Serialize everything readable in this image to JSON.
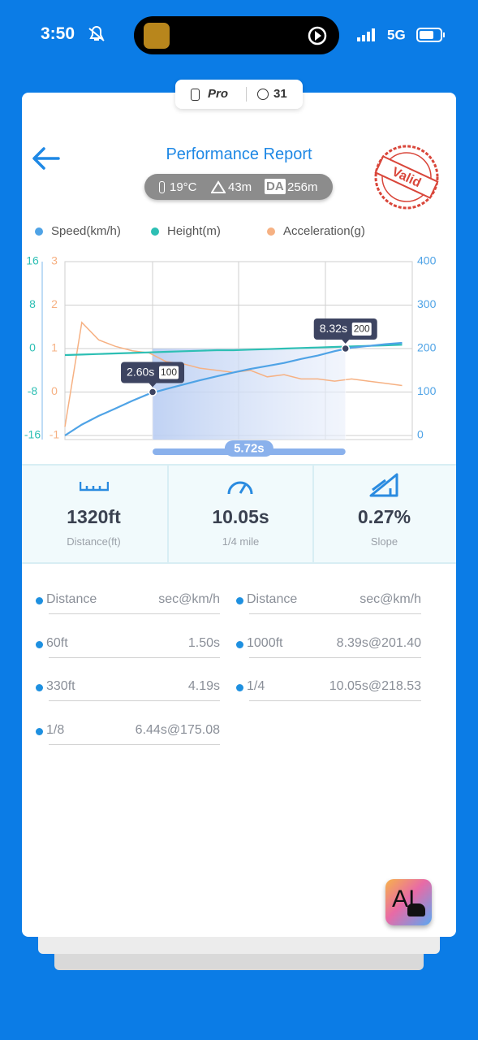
{
  "status_bar": {
    "time": "3:50",
    "network": "5G"
  },
  "badge": {
    "tier": "Pro",
    "count": 31
  },
  "header": {
    "title": "Performance Report",
    "temperature": "19°C",
    "altitude": "43m",
    "da_label": "DA",
    "density_altitude": "256m",
    "stamp": "Valid"
  },
  "chart_data": {
    "type": "line",
    "x": [
      0,
      0.5,
      1,
      1.5,
      2,
      2.5,
      3,
      3.5,
      4,
      4.5,
      5,
      5.5,
      6,
      6.5,
      7,
      7.5,
      8,
      8.5,
      9,
      9.5,
      10
    ],
    "xlim": [
      0,
      10.3
    ],
    "series": [
      {
        "name": "Speed(km/h)",
        "color": "#4fa3e6",
        "axis": "y2",
        "values": [
          0,
          25,
          45,
          62,
          80,
          96,
          107,
          117,
          127,
          136,
          145,
          153,
          160,
          167,
          176,
          184,
          194,
          202,
          206,
          210,
          213
        ]
      },
      {
        "name": "Height(m)",
        "color": "#2dbfb4",
        "axis": "y3",
        "values": [
          -1.2,
          -1.1,
          -1.0,
          -0.9,
          -0.8,
          -0.7,
          -0.6,
          -0.5,
          -0.4,
          -0.3,
          -0.3,
          -0.2,
          -0.1,
          0,
          0.1,
          0.2,
          0.3,
          0.4,
          0.5,
          0.6,
          0.7
        ]
      },
      {
        "name": "Acceleration(g)",
        "color": "#f6b183",
        "axis": "y",
        "values": [
          -0.8,
          1.6,
          1.2,
          1.05,
          0.95,
          0.9,
          0.7,
          0.65,
          0.55,
          0.5,
          0.45,
          0.5,
          0.35,
          0.4,
          0.3,
          0.3,
          0.25,
          0.3,
          0.25,
          0.2,
          0.15
        ]
      }
    ],
    "ylim": [
      -1,
      3
    ],
    "yticks": [
      3,
      2,
      1,
      0,
      -1
    ],
    "y2lim": [
      0,
      400
    ],
    "y2ticks": [
      400,
      300,
      200,
      100,
      0
    ],
    "y3lim": [
      -16,
      16
    ],
    "y3ticks": [
      16,
      8,
      0,
      -8,
      -16
    ],
    "grid": true,
    "markers": [
      {
        "x": {
          "value": 2.6,
          "label": "2.60s"
        },
        "y": 100
      },
      {
        "x": {
          "value": 8.32,
          "label": "8.32s"
        },
        "y": 200
      }
    ],
    "interval": {
      "value": 5.72,
      "label": "5.72s"
    }
  },
  "stats": [
    {
      "value": "1320ft",
      "label": "Distance(ft)"
    },
    {
      "value": "10.05s",
      "label": "1/4 mile"
    },
    {
      "value": "0.27%",
      "label": "Slope"
    }
  ],
  "results": {
    "columns": [
      {
        "header": [
          "Distance",
          "sec@km/h"
        ],
        "rows": [
          [
            "60ft",
            "1.50s"
          ],
          [
            "330ft",
            "4.19s"
          ],
          [
            "1/8",
            "6.44s@175.08"
          ]
        ]
      },
      {
        "header": [
          "Distance",
          "sec@km/h"
        ],
        "rows": [
          [
            "1000ft",
            "8.39s@201.40"
          ],
          [
            "1/4",
            "10.05s@218.53"
          ]
        ]
      }
    ]
  },
  "ai_button": "AI"
}
